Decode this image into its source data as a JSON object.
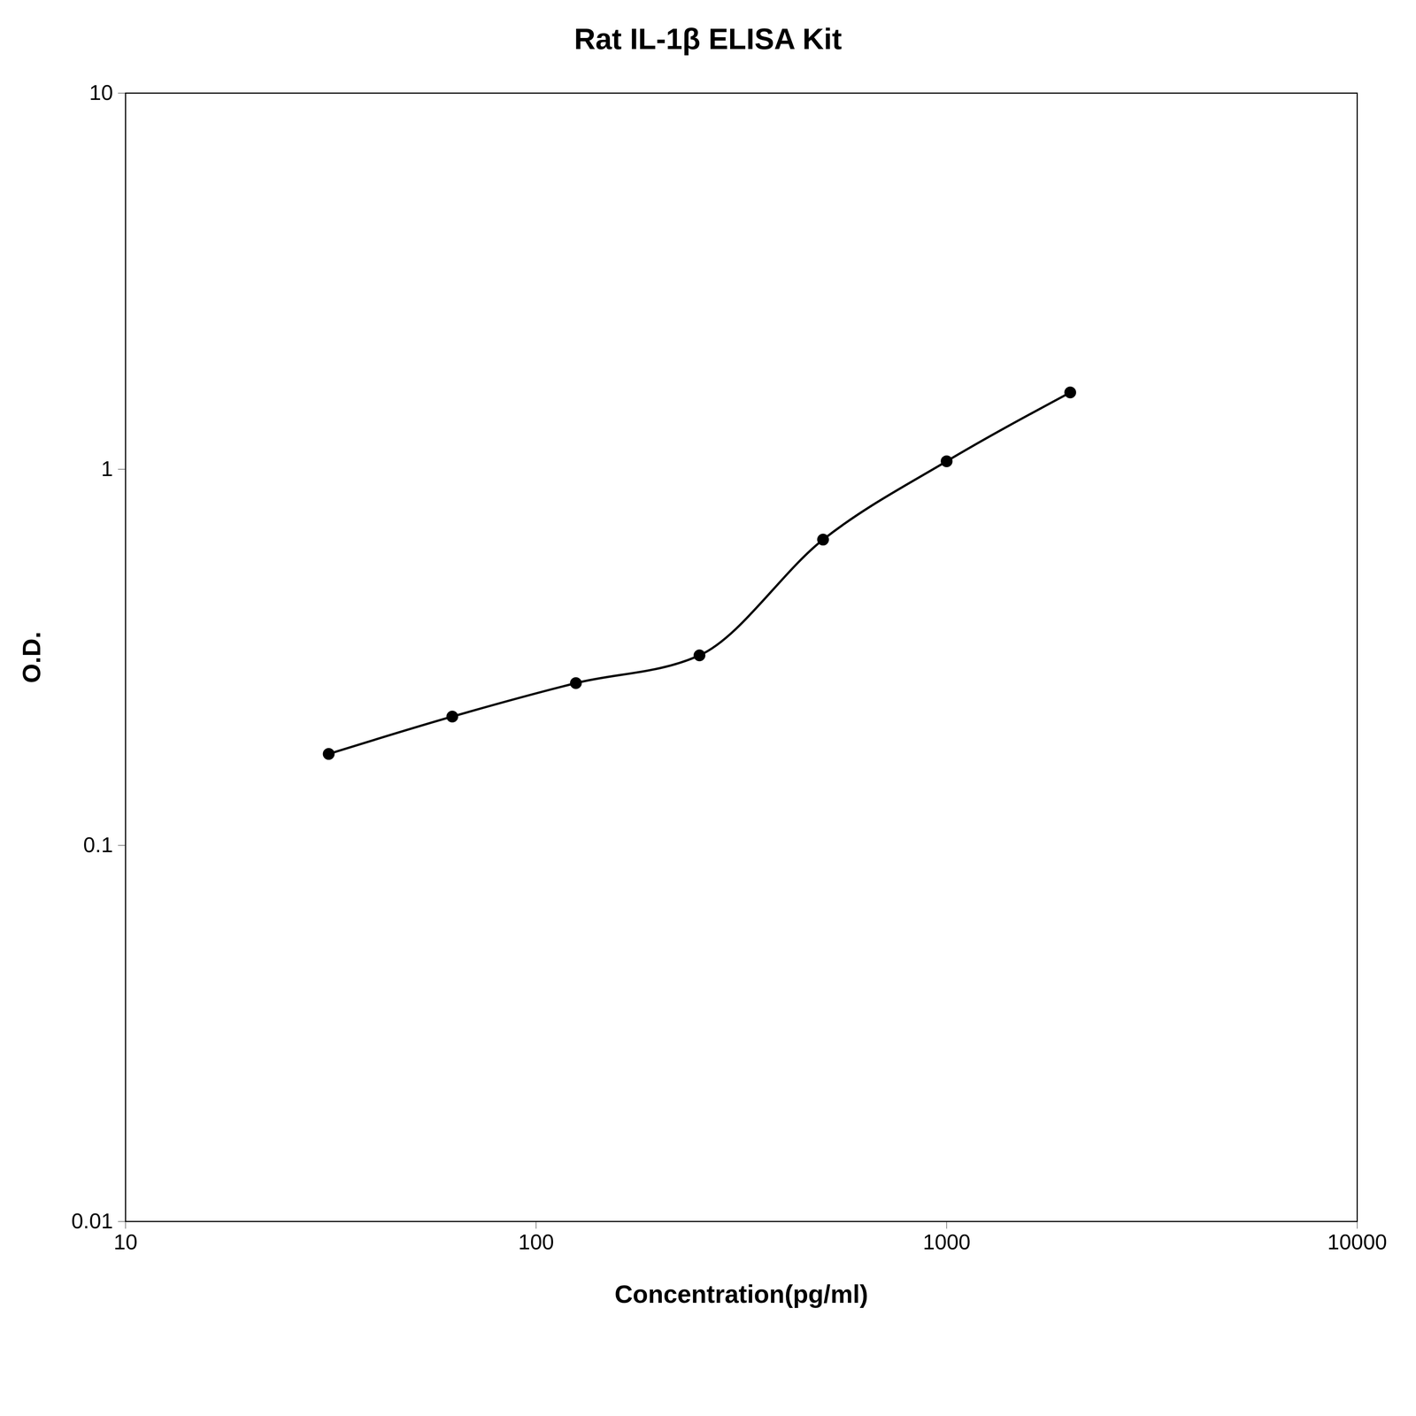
{
  "chart_data": {
    "type": "line",
    "title": "Rat IL-1β ELISA Kit",
    "xlabel": "Concentration(pg/ml)",
    "ylabel": "O.D.",
    "x": [
      31.25,
      62.5,
      125,
      250,
      500,
      1000,
      2000
    ],
    "values": [
      0.175,
      0.22,
      0.27,
      0.32,
      0.65,
      1.05,
      1.6
    ],
    "color": "#000000",
    "marker": "circle",
    "log": true,
    "xlim": [
      10,
      10000
    ],
    "ylim": [
      0.01,
      10
    ],
    "xticks": [
      10,
      100,
      1000,
      10000
    ],
    "yticks": [
      0.01,
      0.1,
      1,
      10
    ],
    "grid": false
  }
}
